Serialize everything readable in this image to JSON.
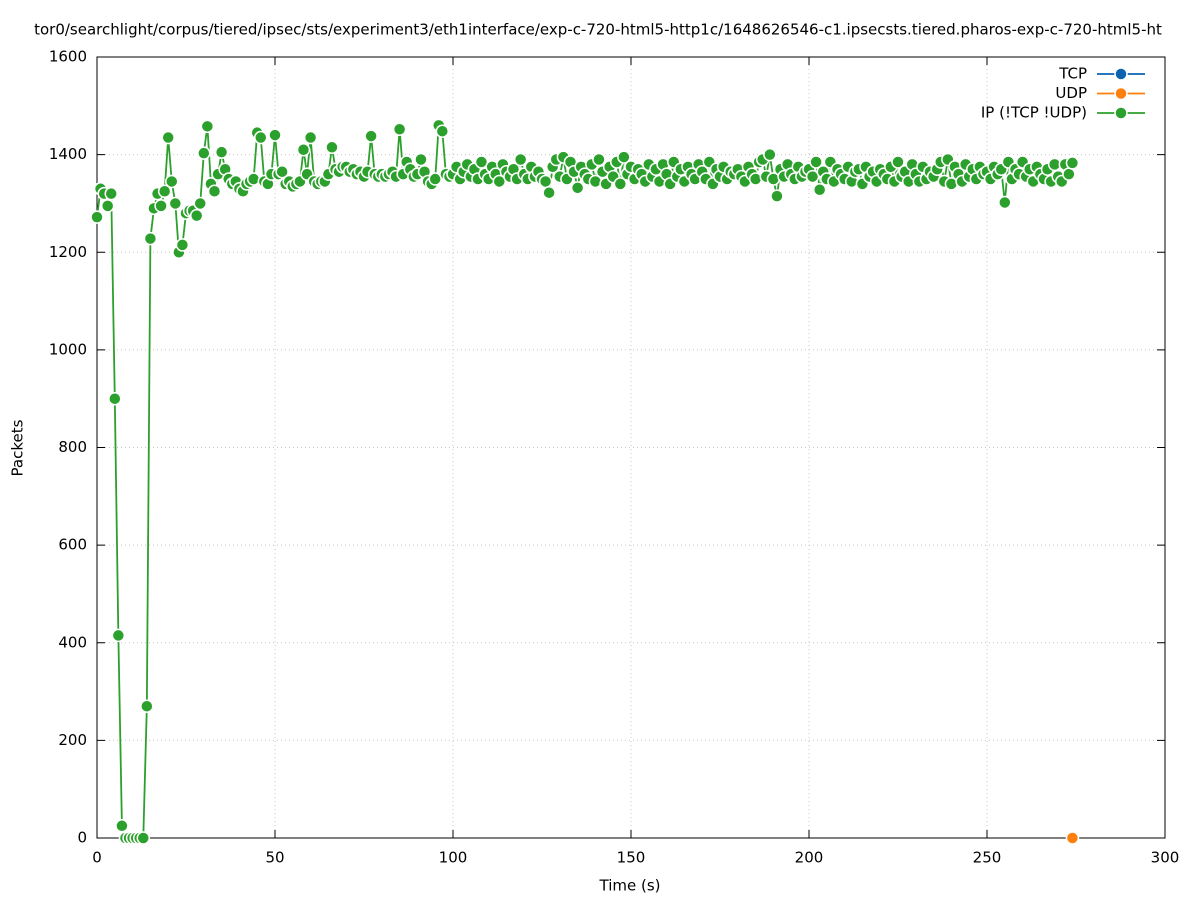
{
  "chart_data": {
    "type": "line",
    "title": "tor0/searchlight/corpus/tiered/ipsec/sts/experiment3/eth1interface/exp-c-720-html5-http1c/1648626546-c1.ipsecsts.tiered.pharos-exp-c-720-html5-ht",
    "x_label": "Time (s)",
    "y_label": "Packets",
    "xlim": [
      0,
      300
    ],
    "xticks": [
      0,
      50,
      100,
      150,
      200,
      250,
      300
    ],
    "ylim": [
      0,
      1600
    ],
    "yticks": [
      0,
      200,
      400,
      600,
      800,
      1000,
      1200,
      1400,
      1600
    ],
    "grid": true,
    "legend": "top-right",
    "series": [
      {
        "name": "TCP",
        "color": "#0b62b0",
        "x": [],
        "values": []
      },
      {
        "name": "UDP",
        "color": "#ff7f0e",
        "x": [
          274
        ],
        "values": [
          0
        ]
      },
      {
        "name": "IP (!TCP  !UDP)",
        "color": "#2ca02c",
        "x": [
          0,
          1,
          2,
          3,
          4,
          5,
          6,
          7,
          8,
          9,
          10,
          11,
          12,
          13,
          14,
          15,
          16,
          17,
          18,
          19,
          20,
          21,
          22,
          23,
          24,
          25,
          26,
          27,
          28,
          29,
          30,
          31,
          32,
          33,
          34,
          35,
          36,
          37,
          38,
          39,
          40,
          41,
          42,
          43,
          44,
          45,
          46,
          47,
          48,
          49,
          50,
          51,
          52,
          53,
          54,
          55,
          56,
          57,
          58,
          59,
          60,
          61,
          62,
          63,
          64,
          65,
          66,
          67,
          68,
          69,
          70,
          71,
          72,
          73,
          74,
          75,
          76,
          77,
          78,
          79,
          80,
          81,
          82,
          83,
          84,
          85,
          86,
          87,
          88,
          89,
          90,
          91,
          92,
          93,
          94,
          95,
          96,
          97,
          98,
          99,
          100,
          101,
          102,
          103,
          104,
          105,
          106,
          107,
          108,
          109,
          110,
          111,
          112,
          113,
          114,
          115,
          116,
          117,
          118,
          119,
          120,
          121,
          122,
          123,
          124,
          125,
          126,
          127,
          128,
          129,
          130,
          131,
          132,
          133,
          134,
          135,
          136,
          137,
          138,
          139,
          140,
          141,
          142,
          143,
          144,
          145,
          146,
          147,
          148,
          149,
          150,
          151,
          152,
          153,
          154,
          155,
          156,
          157,
          158,
          159,
          160,
          161,
          162,
          163,
          164,
          165,
          166,
          167,
          168,
          169,
          170,
          171,
          172,
          173,
          174,
          175,
          176,
          177,
          178,
          179,
          180,
          181,
          182,
          183,
          184,
          185,
          186,
          187,
          188,
          189,
          190,
          191,
          192,
          193,
          194,
          195,
          196,
          197,
          198,
          199,
          200,
          201,
          202,
          203,
          204,
          205,
          206,
          207,
          208,
          209,
          210,
          211,
          212,
          213,
          214,
          215,
          216,
          217,
          218,
          219,
          220,
          221,
          222,
          223,
          224,
          225,
          226,
          227,
          228,
          229,
          230,
          231,
          232,
          233,
          234,
          235,
          236,
          237,
          238,
          239,
          240,
          241,
          242,
          243,
          244,
          245,
          246,
          247,
          248,
          249,
          250,
          251,
          252,
          253,
          254,
          255,
          256,
          257,
          258,
          259,
          260,
          261,
          262,
          263,
          264,
          265,
          266,
          267,
          268,
          269,
          270,
          271,
          272,
          273,
          274
        ],
        "values": [
          1272,
          1330,
          1320,
          1295,
          1320,
          900,
          415,
          25,
          0,
          0,
          0,
          0,
          0,
          0,
          270,
          1228,
          1290,
          1320,
          1295,
          1325,
          1435,
          1345,
          1300,
          1200,
          1215,
          1280,
          1285,
          1285,
          1275,
          1300,
          1403,
          1458,
          1340,
          1325,
          1360,
          1405,
          1370,
          1350,
          1340,
          1345,
          1330,
          1325,
          1340,
          1345,
          1350,
          1445,
          1435,
          1345,
          1340,
          1360,
          1440,
          1360,
          1365,
          1340,
          1345,
          1335,
          1340,
          1345,
          1410,
          1360,
          1435,
          1345,
          1340,
          1345,
          1345,
          1360,
          1415,
          1370,
          1365,
          1375,
          1375,
          1365,
          1370,
          1360,
          1365,
          1355,
          1365,
          1438,
          1360,
          1355,
          1360,
          1355,
          1360,
          1365,
          1355,
          1452,
          1360,
          1385,
          1370,
          1355,
          1360,
          1390,
          1365,
          1345,
          1340,
          1350,
          1460,
          1448,
          1360,
          1355,
          1360,
          1375,
          1350,
          1365,
          1380,
          1355,
          1370,
          1350,
          1385,
          1360,
          1350,
          1375,
          1360,
          1345,
          1380,
          1365,
          1355,
          1370,
          1350,
          1390,
          1360,
          1350,
          1375,
          1355,
          1365,
          1350,
          1345,
          1322,
          1375,
          1390,
          1355,
          1395,
          1350,
          1385,
          1365,
          1332,
          1375,
          1360,
          1350,
          1380,
          1345,
          1390,
          1365,
          1340,
          1375,
          1355,
          1385,
          1340,
          1395,
          1360,
          1375,
          1350,
          1370,
          1360,
          1345,
          1380,
          1355,
          1370,
          1345,
          1380,
          1360,
          1340,
          1385,
          1355,
          1370,
          1345,
          1375,
          1360,
          1350,
          1380,
          1365,
          1350,
          1385,
          1340,
          1370,
          1355,
          1375,
          1350,
          1365,
          1360,
          1370,
          1355,
          1345,
          1375,
          1360,
          1350,
          1385,
          1390,
          1355,
          1400,
          1350,
          1315,
          1370,
          1355,
          1380,
          1360,
          1350,
          1375,
          1355,
          1365,
          1370,
          1355,
          1385,
          1328,
          1365,
          1350,
          1385,
          1345,
          1370,
          1360,
          1350,
          1375,
          1345,
          1365,
          1370,
          1340,
          1375,
          1355,
          1365,
          1345,
          1370,
          1360,
          1350,
          1375,
          1345,
          1385,
          1355,
          1365,
          1345,
          1380,
          1360,
          1345,
          1375,
          1350,
          1365,
          1355,
          1370,
          1385,
          1345,
          1390,
          1340,
          1375,
          1360,
          1345,
          1380,
          1355,
          1370,
          1350,
          1375,
          1360,
          1365,
          1350,
          1375,
          1360,
          1370,
          1302,
          1385,
          1350,
          1370,
          1360,
          1385,
          1355,
          1370,
          1345,
          1375,
          1360,
          1350,
          1370,
          1345,
          1380,
          1355,
          1345,
          1380,
          1360,
          1383
        ]
      }
    ]
  }
}
